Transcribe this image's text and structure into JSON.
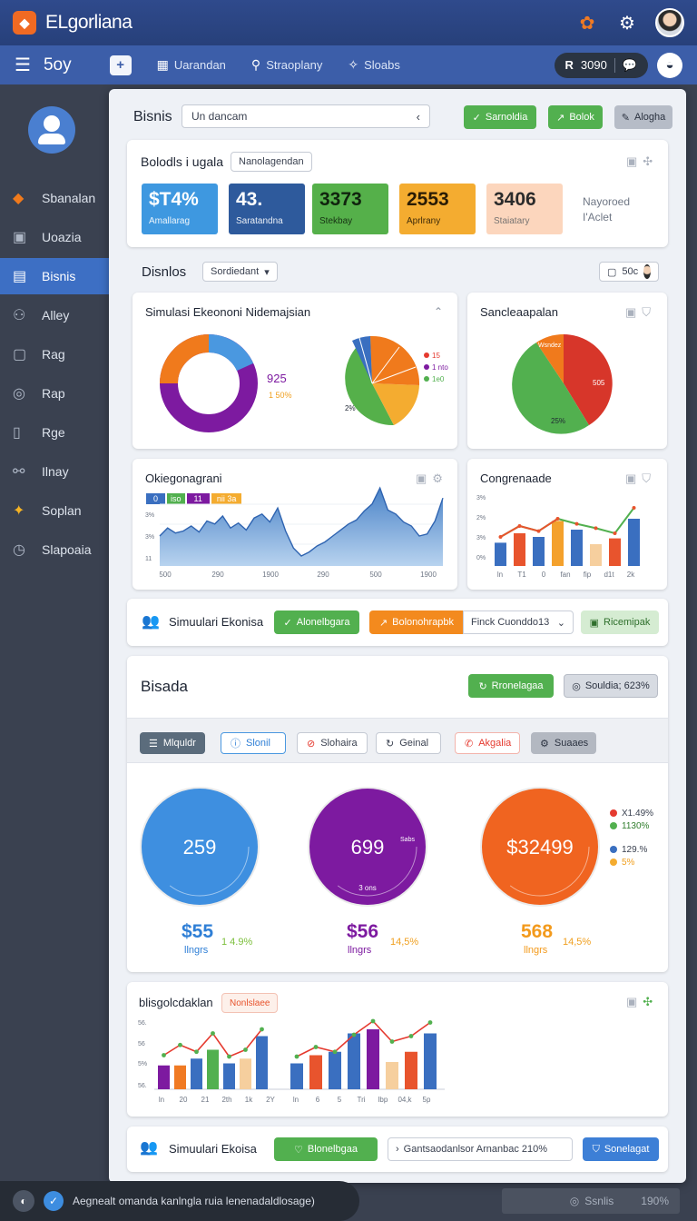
{
  "app": {
    "title": "ELgorliana",
    "logo": "shield-logo"
  },
  "nav": {
    "brand": "5oy",
    "links": [
      {
        "label": "Uarandan",
        "icon": "grid-icon"
      },
      {
        "label": "Straoplany",
        "icon": "user-icon"
      },
      {
        "label": "Sloabs",
        "icon": "sparkle-icon"
      }
    ],
    "pill_value": "3090"
  },
  "sidebar": {
    "items": [
      {
        "label": "Sbanalan",
        "icon": "diamond-icon"
      },
      {
        "label": "Uoazia",
        "icon": "box-icon"
      },
      {
        "label": "Bisnis",
        "icon": "book-icon",
        "active": true
      },
      {
        "label": "Alley",
        "icon": "person-icon"
      },
      {
        "label": "Rag",
        "icon": "doc-icon"
      },
      {
        "label": "Rap",
        "icon": "globe-icon"
      },
      {
        "label": "Rge",
        "icon": "page-icon"
      },
      {
        "label": "Ilnay",
        "icon": "link-icon"
      },
      {
        "label": "Soplan",
        "icon": "star-icon"
      },
      {
        "label": "Slapoaia",
        "icon": "clock-icon"
      }
    ]
  },
  "header": {
    "title": "Bisnis",
    "search_value": "Un dancam",
    "buttons": [
      "Sarnoldia",
      "Bolok",
      "Alogha"
    ]
  },
  "kpi": {
    "title": "Bolodls i ugala",
    "chip": "Nanolagendan",
    "stats": [
      {
        "value": "$T4%",
        "label": "Amallarag",
        "color": "#3e98e0"
      },
      {
        "value": "43.",
        "label": "Saratandna",
        "color": "#2e5a9c"
      },
      {
        "value": "3373",
        "label": "Stekbay",
        "color": "#55b04a"
      },
      {
        "value": "2553",
        "label": "Aprlrany",
        "color": "#f4ac30"
      },
      {
        "value": "3406",
        "label": "Staiatary",
        "color": "#fcd6bd"
      }
    ],
    "side_text": [
      "Nayoroed",
      "I'Aclet"
    ]
  },
  "dashboard": {
    "title": "Disnlos",
    "select_value": "Sordiedant",
    "chip_right": "50c"
  },
  "charts": {
    "simulasi": {
      "title": "Simulasi Ekeononi Nidemajsian",
      "donut_value": "925",
      "donut_sub": "1 50%",
      "pie_legend": [
        "15",
        "1 nto",
        "1e0"
      ],
      "pie_label": "2%"
    },
    "sancle": {
      "title": "Sancleaapalan",
      "label_a": "Wsndez",
      "label_b": "505",
      "label_c": "25%"
    },
    "area": {
      "title": "Okiegonagrani",
      "legend": [
        "0",
        "iso",
        "11",
        "nii 3a"
      ],
      "ylabels": [
        "3%",
        "3%",
        "11"
      ],
      "xlabels": [
        "500",
        "290",
        "1900",
        "290",
        "500",
        "1900"
      ],
      "values": [
        30,
        38,
        33,
        35,
        40,
        34,
        45,
        42,
        50,
        38,
        43,
        36,
        48,
        52,
        44,
        58,
        35,
        18,
        10,
        14,
        20,
        24,
        30,
        36,
        42,
        46,
        55,
        62,
        78,
        56,
        52,
        44,
        40,
        30,
        32,
        45,
        68
      ]
    },
    "congren": {
      "title": "Congrenaade",
      "ylabels": [
        "3%",
        "2%",
        "3%",
        "0%"
      ],
      "xlabels": [
        "ln",
        "T1",
        "0",
        "fan",
        "fip",
        "d1t",
        "2k"
      ],
      "bars": [
        {
          "v": 32,
          "c": "#3a6fc0"
        },
        {
          "v": 45,
          "c": "#e8542d"
        },
        {
          "v": 40,
          "c": "#3a6fc0"
        },
        {
          "v": 62,
          "c": "#f4a12c"
        },
        {
          "v": 50,
          "c": "#3a6fc0"
        },
        {
          "v": 30,
          "c": "#f6cf9e"
        },
        {
          "v": 38,
          "c": "#e8542d"
        },
        {
          "v": 65,
          "c": "#3a6fc0"
        }
      ],
      "line": [
        40,
        55,
        48,
        65,
        58,
        52,
        45,
        80
      ]
    }
  },
  "sim_bar": {
    "label": "Simuulari Ekonisa",
    "btn1": "Alonelbgara",
    "btn2": "Bolonohrapbk",
    "select": "Finck Cuonddo13",
    "btn3": "Ricemipak"
  },
  "bisada": {
    "title": "Bisada",
    "btn1": "Rronelagaa",
    "btn2": "Souldia; 623%",
    "tabs": [
      {
        "label": "Mlquldr",
        "icon": "list-icon"
      },
      {
        "label": "Slonil",
        "icon": "info-icon"
      },
      {
        "label": "Slohaira",
        "icon": "ban-icon"
      },
      {
        "label": "Geinal",
        "icon": "refresh-icon"
      },
      {
        "label": "Akgalia",
        "icon": "phone-icon"
      },
      {
        "label": "Suaaes",
        "icon": "gear-icon"
      }
    ],
    "circles": [
      {
        "value": "259",
        "color": "#3e8fe0",
        "under": "$55",
        "under_color": "#2f7fd6",
        "sub": "llngrs",
        "pct": "1 4.9%",
        "pct_color": "#7cbf3c"
      },
      {
        "value": "699",
        "color": "#7d1aa0",
        "under": "$56",
        "under_color": "#7d1aa0",
        "sub": "llngrs",
        "pct": "14,5%",
        "pct_color": "#f0a020",
        "inner": "3 ons",
        "side_label": "Sabs"
      },
      {
        "value": "$32499",
        "color": "#f06420",
        "under": "568",
        "under_color": "#f39a1c",
        "sub": "llngrs",
        "pct": "14,5%",
        "pct_color": "#f0a020"
      }
    ],
    "legend": [
      {
        "label": "X1.49%",
        "color": "#e53a2f"
      },
      {
        "label": "1130%",
        "color": "#52b04f"
      },
      {
        "label": "129.%",
        "color": "#3a6fc0"
      },
      {
        "label": "5%",
        "color": "#f4ac30"
      }
    ]
  },
  "bottom_chart": {
    "title": "blisgolcdaklan",
    "chip": "Nonlslaee",
    "ylabels": [
      "56.",
      "56",
      "5%",
      "56."
    ],
    "xlabels": [
      "ln",
      "20",
      "21",
      "2th",
      "1k",
      "2Y",
      "ln",
      "6",
      "5",
      "Tri",
      "lbp",
      "04,k",
      "5p"
    ],
    "bars_left": [
      {
        "v": 35,
        "c": "#7d1aa0"
      },
      {
        "v": 35,
        "c": "#f07a23"
      },
      {
        "v": 45,
        "c": "#3a6fc0"
      },
      {
        "v": 58,
        "c": "#52b04f"
      },
      {
        "v": 38,
        "c": "#3a6fc0"
      },
      {
        "v": 45,
        "c": "#f6cf9e"
      },
      {
        "v": 78,
        "c": "#3a6fc0"
      }
    ],
    "line_left": [
      50,
      65,
      55,
      82,
      48,
      58,
      88
    ],
    "bars_right": [
      {
        "v": 38,
        "c": "#3a6fc0"
      },
      {
        "v": 50,
        "c": "#e8542d"
      },
      {
        "v": 55,
        "c": "#3a6fc0"
      },
      {
        "v": 82,
        "c": "#3a6fc0"
      },
      {
        "v": 88,
        "c": "#7d1aa0"
      },
      {
        "v": 40,
        "c": "#f6cf9e"
      },
      {
        "v": 55,
        "c": "#e8542d"
      },
      {
        "v": 82,
        "c": "#3a6fc0"
      }
    ],
    "line_right": [
      48,
      62,
      55,
      80,
      100,
      70,
      78,
      98
    ]
  },
  "footer_bar": {
    "label": "Simuulari Ekoisa",
    "btn1": "Blonelbgaa",
    "text": "Gantsaodanlsor Arnanbac 210%",
    "btn2": "Sonelagat"
  },
  "toast": {
    "text": "Aegnealt omanda kanlngla ruia lenenadaldlosage)"
  },
  "status": {
    "left": "Ssnlis",
    "right": "190%"
  }
}
